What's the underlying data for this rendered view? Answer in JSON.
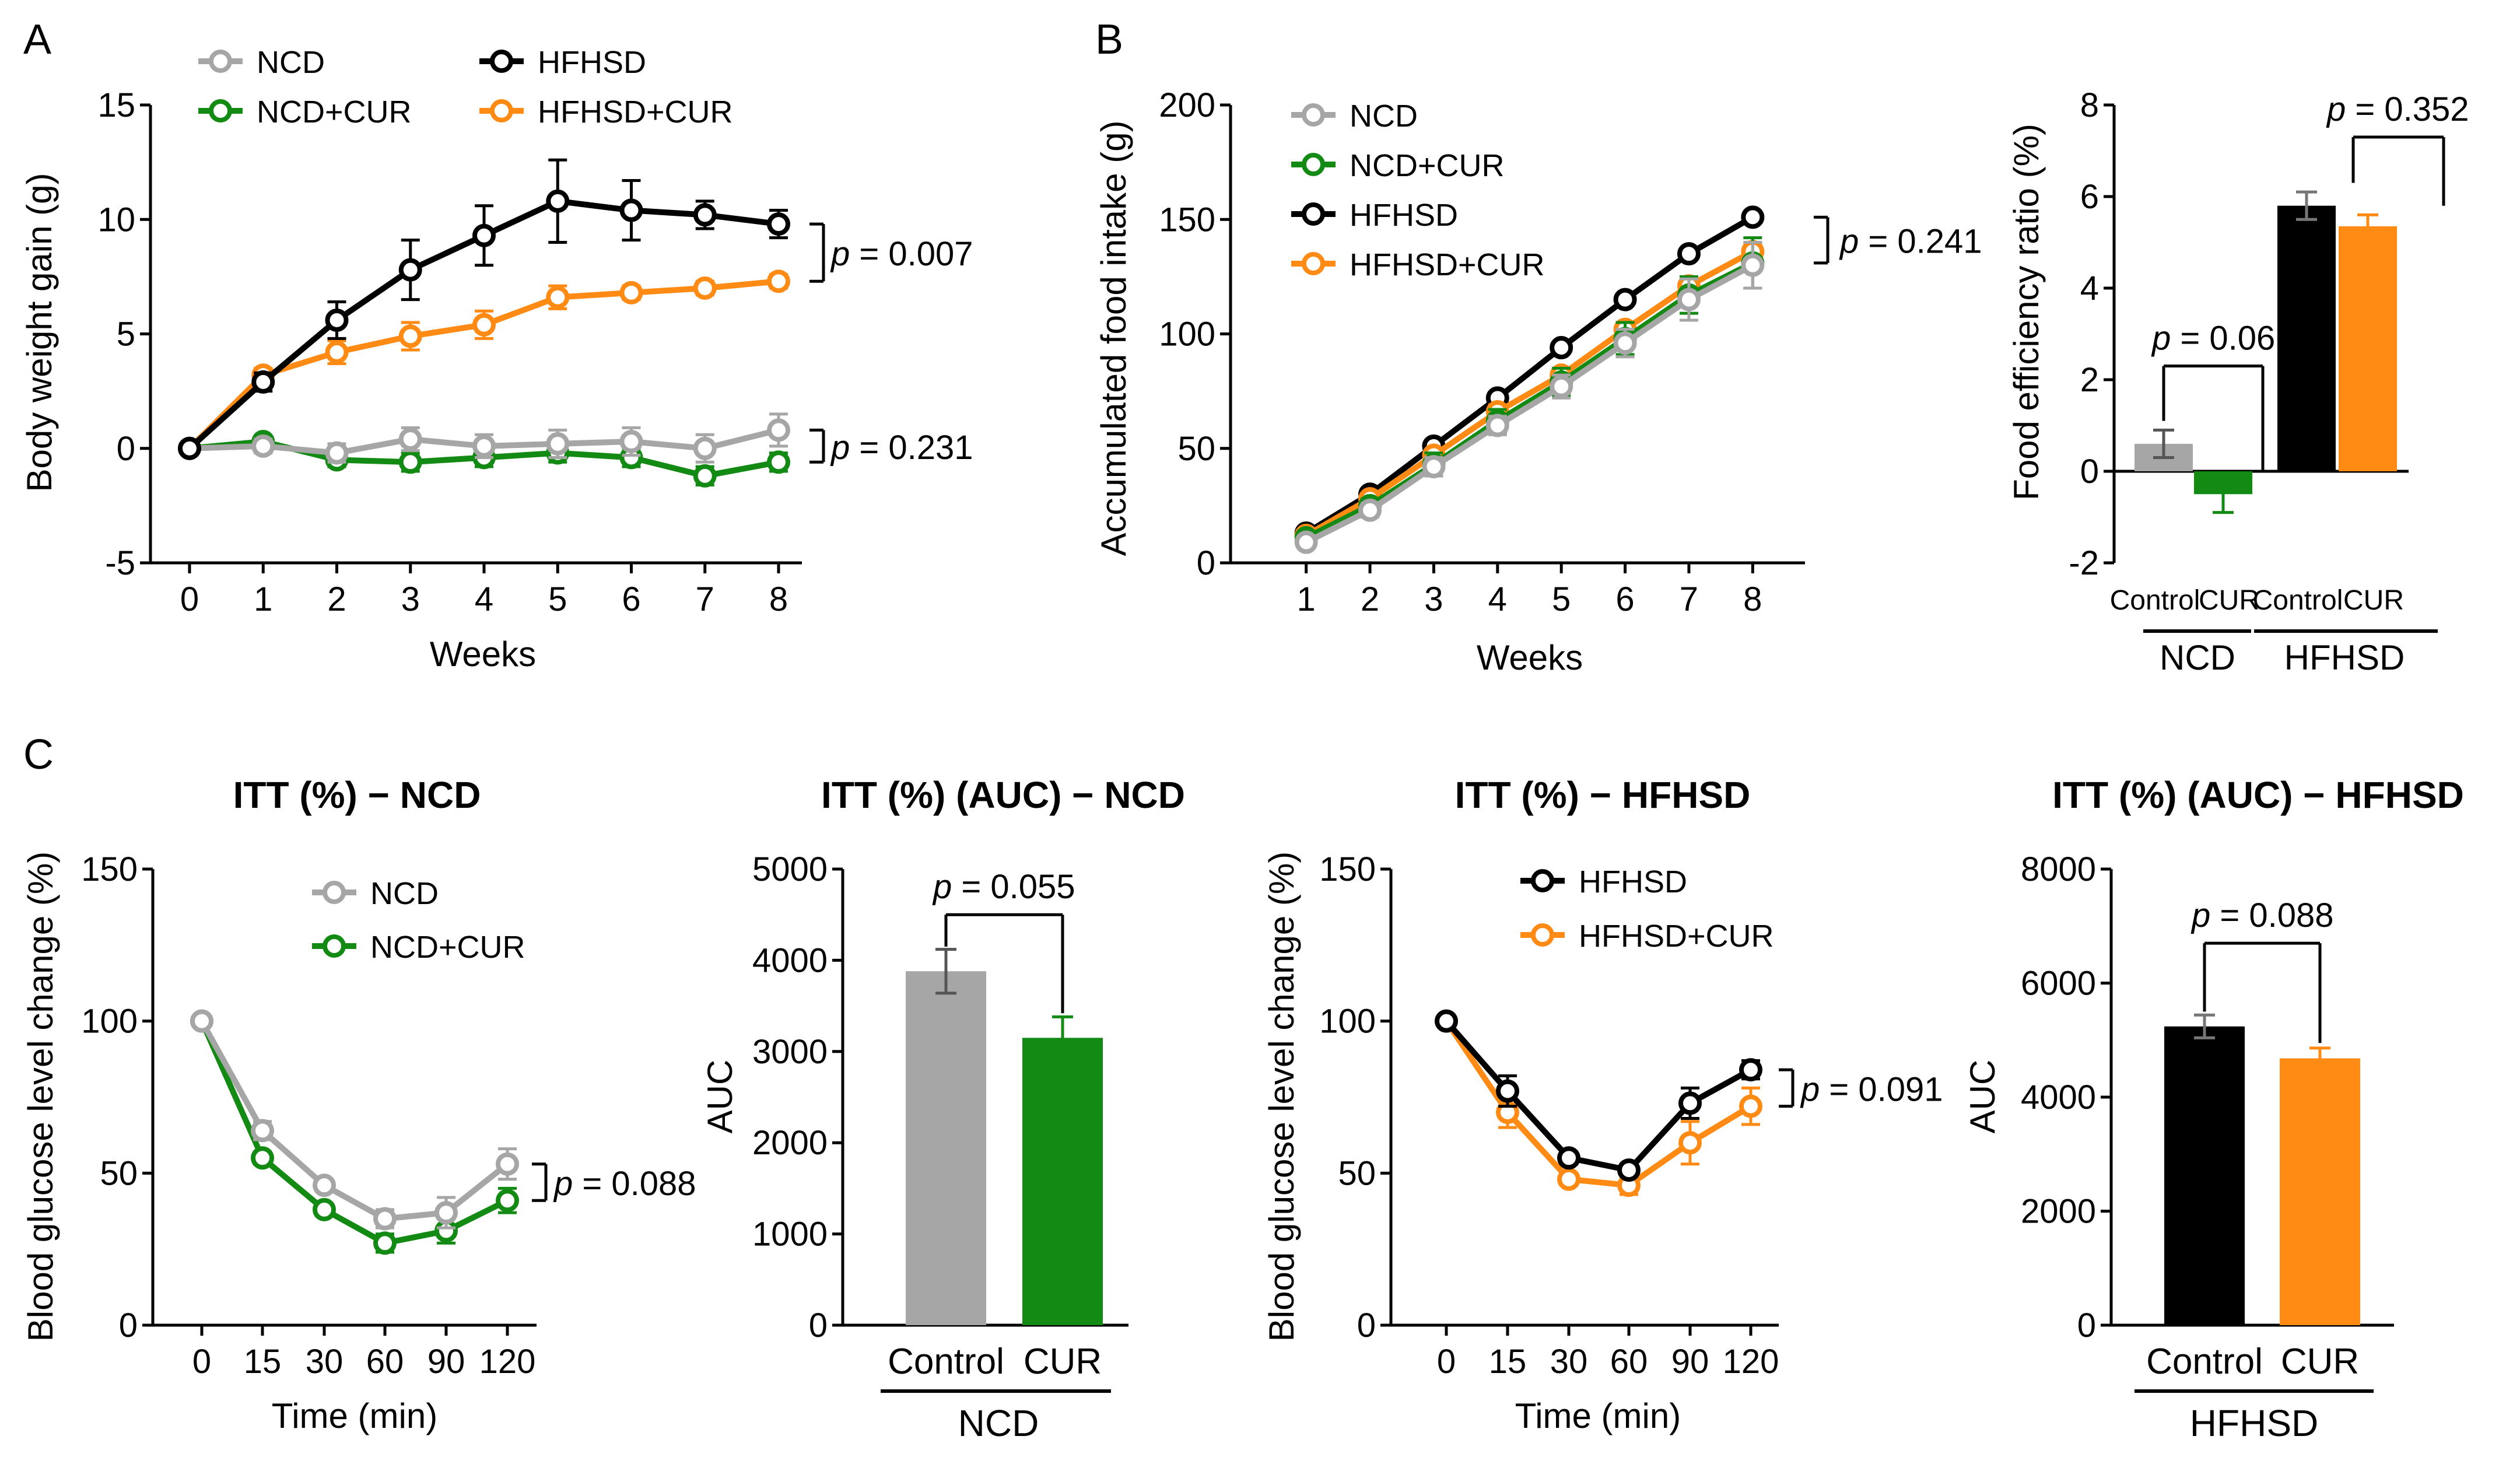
{
  "panel_labels": {
    "A": "A",
    "B": "B",
    "C": "C"
  },
  "colors": {
    "ncd": "#a6a6a6",
    "ncd_cur": "#138a14",
    "hfhsd": "#000000",
    "hfhsd_cur": "#ff8a14"
  },
  "chart_data": [
    {
      "id": "A",
      "type": "line",
      "title": "",
      "xlabel": "Weeks",
      "ylabel": "Body weight gain (g)",
      "x": [
        0,
        1,
        2,
        3,
        4,
        5,
        6,
        7,
        8
      ],
      "xlim": [
        0,
        8
      ],
      "ylim": [
        -5,
        15
      ],
      "yticks": [
        -5,
        0,
        5,
        10,
        15
      ],
      "ytick_labels": [
        "-5",
        "0",
        "5",
        "10",
        "15"
      ],
      "xtick_labels": [
        "0",
        "1",
        "2",
        "3",
        "4",
        "5",
        "6",
        "7",
        "8"
      ],
      "series": [
        {
          "name": "NCD",
          "key": "ncd",
          "values": [
            0,
            0.1,
            -0.2,
            0.4,
            0.1,
            0.2,
            0.3,
            0.0,
            0.8
          ],
          "errors": [
            0,
            0.3,
            0.4,
            0.5,
            0.5,
            0.6,
            0.6,
            0.6,
            0.7
          ]
        },
        {
          "name": "NCD+CUR",
          "key": "ncd_cur",
          "values": [
            0,
            0.3,
            -0.5,
            -0.6,
            -0.4,
            -0.2,
            -0.4,
            -1.2,
            -0.6
          ],
          "errors": [
            0,
            0.2,
            0.3,
            0.4,
            0.4,
            0.4,
            0.4,
            0.4,
            0.4
          ]
        },
        {
          "name": "HFHSD",
          "key": "hfhsd",
          "values": [
            0,
            2.9,
            5.6,
            7.8,
            9.3,
            10.8,
            10.4,
            10.2,
            9.8
          ],
          "errors": [
            0,
            0.4,
            0.8,
            1.3,
            1.3,
            1.8,
            1.3,
            0.6,
            0.6
          ]
        },
        {
          "name": "HFHSD+CUR",
          "key": "hfhsd_cur",
          "values": [
            0,
            3.2,
            4.2,
            4.9,
            5.4,
            6.6,
            6.8,
            7.0,
            7.3
          ],
          "errors": [
            0,
            0.3,
            0.5,
            0.6,
            0.6,
            0.5,
            0.3,
            0.3,
            0.3
          ]
        }
      ],
      "legend_order": [
        0,
        2,
        1,
        3
      ],
      "annotations": [
        {
          "p": "p",
          "text": " = 0.007",
          "between": [
            2,
            3
          ]
        },
        {
          "p": "p",
          "text": " = 0.231",
          "between": [
            0,
            1
          ]
        }
      ]
    },
    {
      "id": "B1",
      "type": "line",
      "title": "",
      "xlabel": "Weeks",
      "ylabel": "Accumulated food intake (g)",
      "x": [
        1,
        2,
        3,
        4,
        5,
        6,
        7,
        8
      ],
      "xlim": [
        0.5,
        8.5
      ],
      "ylim": [
        0,
        200
      ],
      "yticks": [
        0,
        50,
        100,
        150,
        200
      ],
      "ytick_labels": [
        "0",
        "50",
        "100",
        "150",
        "200"
      ],
      "xtick_labels": [
        "1",
        "2",
        "3",
        "4",
        "5",
        "6",
        "7",
        "8"
      ],
      "series": [
        {
          "name": "NCD",
          "key": "ncd",
          "values": [
            9,
            23,
            42,
            60,
            77,
            96,
            115,
            130
          ],
          "errors": [
            2,
            3,
            4,
            4,
            5,
            6,
            9,
            10
          ]
        },
        {
          "name": "NCD+CUR",
          "key": "ncd_cur",
          "values": [
            11,
            25,
            43,
            62,
            79,
            98,
            117,
            131
          ],
          "errors": [
            2,
            3,
            5,
            5,
            6,
            7,
            8,
            11
          ]
        },
        {
          "name": "HFHSD",
          "key": "hfhsd",
          "values": [
            13,
            30,
            51,
            72,
            94,
            115,
            135,
            151
          ],
          "errors": [
            1,
            2,
            2,
            2,
            2,
            2,
            2,
            2
          ]
        },
        {
          "name": "HFHSD+CUR",
          "key": "hfhsd_cur",
          "values": [
            12,
            28,
            47,
            66,
            82,
            102,
            121,
            136
          ],
          "errors": [
            1,
            2,
            2,
            3,
            3,
            3,
            3,
            3
          ]
        }
      ],
      "legend_order": [
        0,
        1,
        2,
        3
      ],
      "annotations": [
        {
          "p": "p",
          "text": " = 0.241"
        }
      ]
    },
    {
      "id": "B2",
      "type": "bar",
      "title": "",
      "ylabel": "Food efficiency ratio (%)",
      "categories": [
        "Control",
        "CUR",
        "Control",
        "CUR"
      ],
      "group_labels": [
        "NCD",
        "HFHSD"
      ],
      "values": [
        0.6,
        -0.5,
        5.8,
        5.35
      ],
      "errors": [
        0.3,
        0.4,
        0.3,
        0.25
      ],
      "bar_keys": [
        "ncd",
        "ncd_cur",
        "hfhsd",
        "hfhsd_cur"
      ],
      "ylim": [
        -2,
        8
      ],
      "yticks": [
        -2,
        0,
        2,
        4,
        6,
        8
      ],
      "ytick_labels": [
        "-2",
        "0",
        "2",
        "4",
        "6",
        "8"
      ],
      "annotations": [
        {
          "p": "p",
          "text": " = 0.061"
        },
        {
          "p": "p",
          "text": " = 0.352"
        }
      ]
    },
    {
      "id": "C1",
      "type": "line",
      "title": "ITT (%) − NCD",
      "xlabel": "Time (min)",
      "ylabel": "Blood glucose level change (%)",
      "x": [
        0,
        15,
        30,
        60,
        90,
        120
      ],
      "xtick_labels": [
        "0",
        "15",
        "30",
        "60",
        "90",
        "120"
      ],
      "ylim": [
        0,
        150
      ],
      "yticks": [
        0,
        50,
        100,
        150
      ],
      "ytick_labels": [
        "0",
        "50",
        "100",
        "150"
      ],
      "series": [
        {
          "name": "NCD",
          "key": "ncd",
          "values": [
            100,
            64,
            46,
            35,
            37,
            53
          ],
          "errors": [
            0,
            3,
            2,
            3,
            5,
            5
          ]
        },
        {
          "name": "NCD+CUR",
          "key": "ncd_cur",
          "values": [
            100,
            55,
            38,
            27,
            31,
            41
          ],
          "errors": [
            0,
            2,
            2,
            3,
            4,
            4
          ]
        }
      ],
      "legend_order": [
        0,
        1
      ],
      "annotations": [
        {
          "p": "p",
          "text": " = 0.088"
        }
      ]
    },
    {
      "id": "C2",
      "type": "bar",
      "title": "ITT (%) (AUC) − NCD",
      "ylabel": "AUC",
      "categories": [
        "Control",
        "CUR"
      ],
      "group_labels": [
        "NCD"
      ],
      "values": [
        3880,
        3150
      ],
      "errors": [
        240,
        230
      ],
      "bar_keys": [
        "ncd",
        "ncd_cur"
      ],
      "ylim": [
        0,
        5000
      ],
      "yticks": [
        0,
        1000,
        2000,
        3000,
        4000,
        5000
      ],
      "ytick_labels": [
        "0",
        "1000",
        "2000",
        "3000",
        "4000",
        "5000"
      ],
      "annotations": [
        {
          "p": "p",
          "text": " = 0.055"
        }
      ]
    },
    {
      "id": "C3",
      "type": "line",
      "title": "ITT (%) − HFHSD",
      "xlabel": "Time (min)",
      "ylabel": "Blood glucose level change (%)",
      "x": [
        0,
        15,
        30,
        60,
        90,
        120
      ],
      "xtick_labels": [
        "0",
        "15",
        "30",
        "60",
        "90",
        "120"
      ],
      "ylim": [
        0,
        150
      ],
      "yticks": [
        0,
        50,
        100,
        150
      ],
      "ytick_labels": [
        "0",
        "50",
        "100",
        "150"
      ],
      "series": [
        {
          "name": "HFHSD",
          "key": "hfhsd",
          "values": [
            100,
            77,
            55,
            51,
            73,
            84
          ],
          "errors": [
            0,
            5,
            2,
            2,
            5,
            3
          ]
        },
        {
          "name": "HFHSD+CUR",
          "key": "hfhsd_cur",
          "values": [
            100,
            70,
            48,
            46,
            60,
            72
          ],
          "errors": [
            0,
            5,
            2,
            3,
            7,
            6
          ]
        }
      ],
      "legend_order": [
        0,
        1
      ],
      "annotations": [
        {
          "p": "p",
          "text": " = 0.091"
        }
      ]
    },
    {
      "id": "C4",
      "type": "bar",
      "title": "ITT (%) (AUC) − HFHSD",
      "ylabel": "AUC",
      "categories": [
        "Control",
        "CUR"
      ],
      "group_labels": [
        "HFHSD"
      ],
      "values": [
        5240,
        4680
      ],
      "errors": [
        200,
        180
      ],
      "bar_keys": [
        "hfhsd",
        "hfhsd_cur"
      ],
      "ylim": [
        0,
        8000
      ],
      "yticks": [
        0,
        2000,
        4000,
        6000,
        8000
      ],
      "ytick_labels": [
        "0",
        "2000",
        "4000",
        "6000",
        "8000"
      ],
      "annotations": [
        {
          "p": "p",
          "text": " = 0.088"
        }
      ]
    }
  ]
}
